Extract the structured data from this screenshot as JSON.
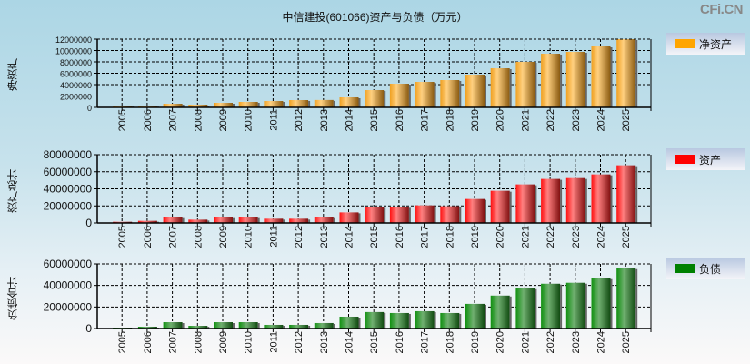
{
  "title": "中信建投(601066)资产与负债（万元）",
  "logo": "CFi.CN",
  "chart_data": [
    {
      "type": "bar",
      "title": "中信建投(601066)资产与负债（万元）",
      "ylabel": "净资产",
      "legend": "净资产",
      "legend_position": "right",
      "color": "#FFA500",
      "categories": [
        "2005",
        "2006",
        "2007",
        "2008",
        "2009",
        "2010",
        "2011",
        "2012",
        "2013",
        "2014",
        "2015",
        "2016",
        "2017",
        "2018",
        "2019",
        "2020",
        "2021",
        "2022",
        "2023",
        "2024",
        "2025"
      ],
      "values": [
        320000,
        300000,
        640000,
        480000,
        800000,
        960000,
        1120000,
        1280000,
        1300000,
        1760000,
        3040000,
        4160000,
        4480000,
        4800000,
        5760000,
        6880000,
        8000000,
        9440000,
        9760000,
        10720000,
        12000000
      ],
      "ylim": [
        0,
        12000000
      ],
      "yticks": [
        "0",
        "2000000",
        "4000000",
        "6000000",
        "8000000",
        "10000000",
        "12000000"
      ],
      "grid": true
    },
    {
      "type": "bar",
      "ylabel": "资产总计",
      "legend": "资产",
      "legend_position": "right",
      "color": "#FF0000",
      "categories": [
        "2005",
        "2006",
        "2007",
        "2008",
        "2009",
        "2010",
        "2011",
        "2012",
        "2013",
        "2014",
        "2015",
        "2016",
        "2017",
        "2018",
        "2019",
        "2020",
        "2021",
        "2022",
        "2023",
        "2024",
        "2025"
      ],
      "values": [
        1400000,
        2500000,
        6800000,
        3900000,
        6800000,
        6800000,
        5000000,
        5000000,
        6800000,
        12400000,
        18800000,
        18800000,
        20600000,
        19600000,
        28100000,
        37700000,
        45200000,
        51600000,
        52600000,
        56900000,
        67600000
      ],
      "ylim": [
        0,
        80000000
      ],
      "yticks": [
        "0",
        "20000000",
        "40000000",
        "60000000",
        "80000000"
      ],
      "grid": true
    },
    {
      "type": "bar",
      "ylabel": "负债合计",
      "legend": "负债",
      "legend_position": "right",
      "color": "#008000",
      "categories": [
        "2005",
        "2006",
        "2007",
        "2008",
        "2009",
        "2010",
        "2011",
        "2012",
        "2013",
        "2014",
        "2015",
        "2016",
        "2017",
        "2018",
        "2019",
        "2020",
        "2021",
        "2022",
        "2023",
        "2024",
        "2025"
      ],
      "values": [
        850000,
        1700000,
        5900000,
        2500000,
        5900000,
        5900000,
        3400000,
        3400000,
        5100000,
        11000000,
        15300000,
        14400000,
        16100000,
        14400000,
        22900000,
        30600000,
        37400000,
        41600000,
        42500000,
        46700000,
        56000000
      ],
      "ylim": [
        0,
        60000000
      ],
      "yticks": [
        "0",
        "20000000",
        "40000000",
        "60000000"
      ],
      "grid": true
    }
  ]
}
